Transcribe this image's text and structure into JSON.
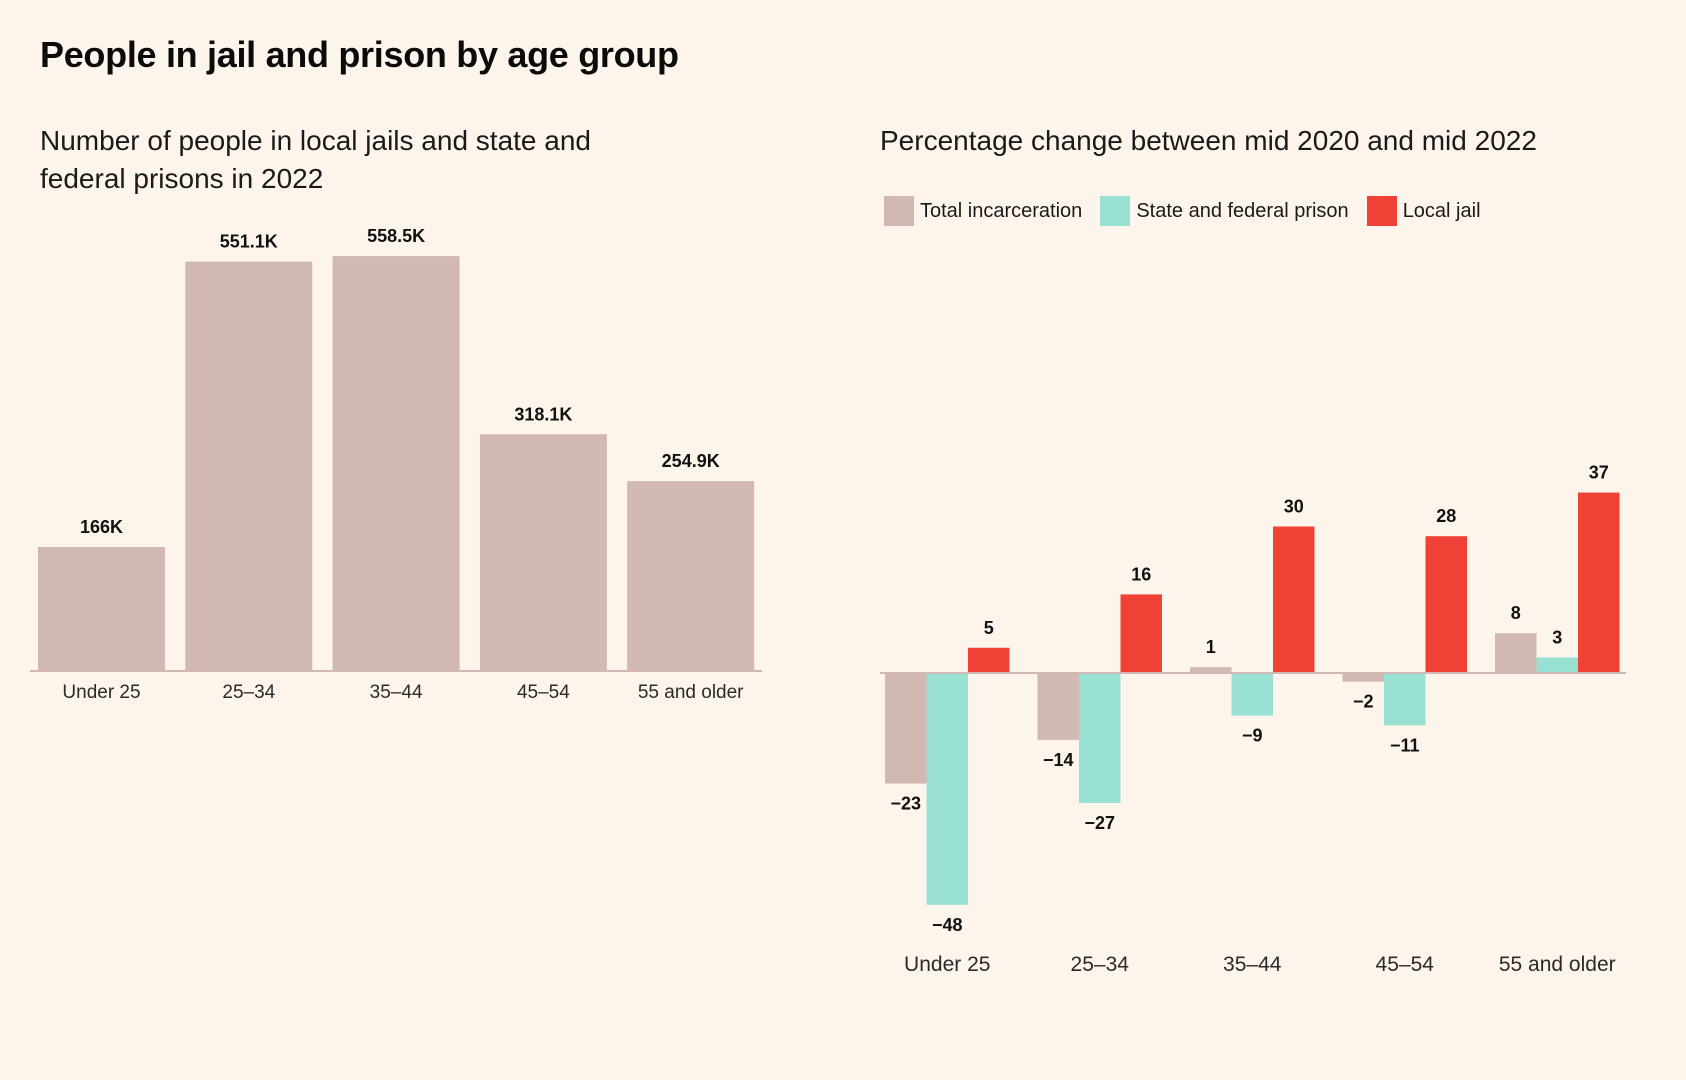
{
  "title": "People in jail and prison by age group",
  "chart_data": [
    {
      "type": "bar",
      "title": "Number of people in local jails and state and federal prisons in 2022",
      "categories": [
        "Under 25",
        "25–34",
        "35–44",
        "45–54",
        "55 and older"
      ],
      "values": [
        166000,
        551100,
        558500,
        318100,
        254900
      ],
      "value_labels": [
        "166K",
        "551.1K",
        "558.5K",
        "318.1K",
        "254.9K"
      ],
      "xlabel": "",
      "ylabel": "",
      "ylim": [
        0,
        560000
      ],
      "grid": false,
      "color": "#d1b8b2"
    },
    {
      "type": "bar",
      "title": "Percentage change between mid 2020 and mid 2022",
      "categories": [
        "Under 25",
        "25–34",
        "35–44",
        "45–54",
        "55 and older"
      ],
      "series": [
        {
          "name": "Total incarceration",
          "values": [
            -23,
            -14,
            1,
            -2,
            8
          ],
          "color": "#d1b8b2"
        },
        {
          "name": "State and federal prison",
          "values": [
            -48,
            -27,
            -9,
            -11,
            3
          ],
          "color": "#98e0d2"
        },
        {
          "name": "Local jail",
          "values": [
            5,
            16,
            30,
            28,
            37
          ],
          "color": "#ef4136"
        }
      ],
      "value_label_format": "minus sign for negatives",
      "legend": "top-left",
      "xlabel": "",
      "ylabel": "",
      "ylim": [
        -48,
        37
      ],
      "grid": false
    }
  ]
}
